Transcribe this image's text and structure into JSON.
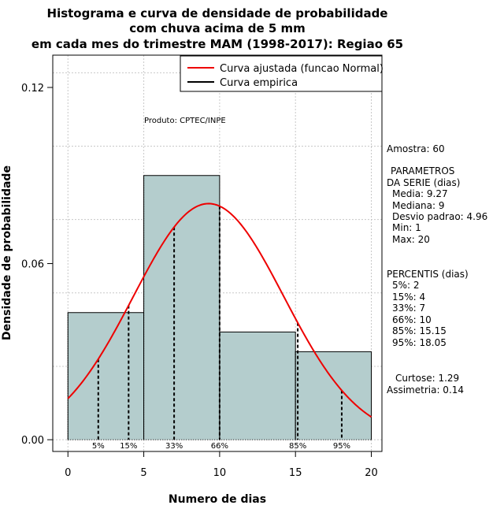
{
  "chart_data": {
    "type": "bar",
    "title_lines": [
      "Histograma e curva de densidade de probabilidade",
      "com chuva acima de 5 mm",
      "em cada mes do trimestre MAM (1998-2017): Regiao 65"
    ],
    "xlabel": "Numero de dias",
    "ylabel": "Densidade de probabilidade",
    "xlim": [
      -1,
      20.7
    ],
    "ylim": [
      -0.004,
      0.131
    ],
    "x_ticks": [
      0,
      5,
      10,
      15,
      20
    ],
    "x_tick_labels": [
      "0",
      "5",
      "10",
      "15",
      "20"
    ],
    "y_ticks": [
      0.0,
      0.06,
      0.12
    ],
    "y_tick_labels": [
      "0.00",
      "0.06",
      "0.12"
    ],
    "grid": true,
    "bins": [
      {
        "start": 0,
        "end": 5,
        "density": 0.0433
      },
      {
        "start": 5,
        "end": 10,
        "density": 0.09
      },
      {
        "start": 10,
        "end": 15,
        "density": 0.0367
      },
      {
        "start": 15,
        "end": 20,
        "density": 0.03
      }
    ],
    "bar_color": "#b4cdcd",
    "normal_curve": {
      "name": "Curva ajustada (funcao Normal)",
      "mean": 9.27,
      "sd": 4.96,
      "x_range": [
        0,
        20
      ],
      "color": "#ee0000"
    },
    "empirical_curve": {
      "name": "Curva empirica",
      "color": "#000000"
    },
    "percentile_lines": [
      {
        "label": "5%",
        "x": 2
      },
      {
        "label": "15%",
        "x": 4
      },
      {
        "label": "33%",
        "x": 7
      },
      {
        "label": "66%",
        "x": 10
      },
      {
        "label": "85%",
        "x": 15.15
      },
      {
        "label": "95%",
        "x": 18.05
      }
    ],
    "legend_position": "top-right",
    "annotation": "Produto: CPTEC/INPE"
  },
  "side_panel": {
    "amostra": "Amostra: 60",
    "parametros_title_1": "PARAMETROS",
    "parametros_title_2": "DA SERIE (dias)",
    "media": "Media: 9.27",
    "mediana": "Mediana: 9",
    "desvio": "Desvio padrao: 4.96",
    "min": "Min: 1",
    "max": "Max: 20",
    "percentis_title": "PERCENTIS (dias)",
    "p5": "5%: 2",
    "p15": "15%: 4",
    "p33": "33%: 7",
    "p66": "66%: 10",
    "p85": "85%: 15.15",
    "p95": "95%: 18.05",
    "curtose": "Curtose: 1.29",
    "assimetria": "Assimetria: 0.14"
  }
}
